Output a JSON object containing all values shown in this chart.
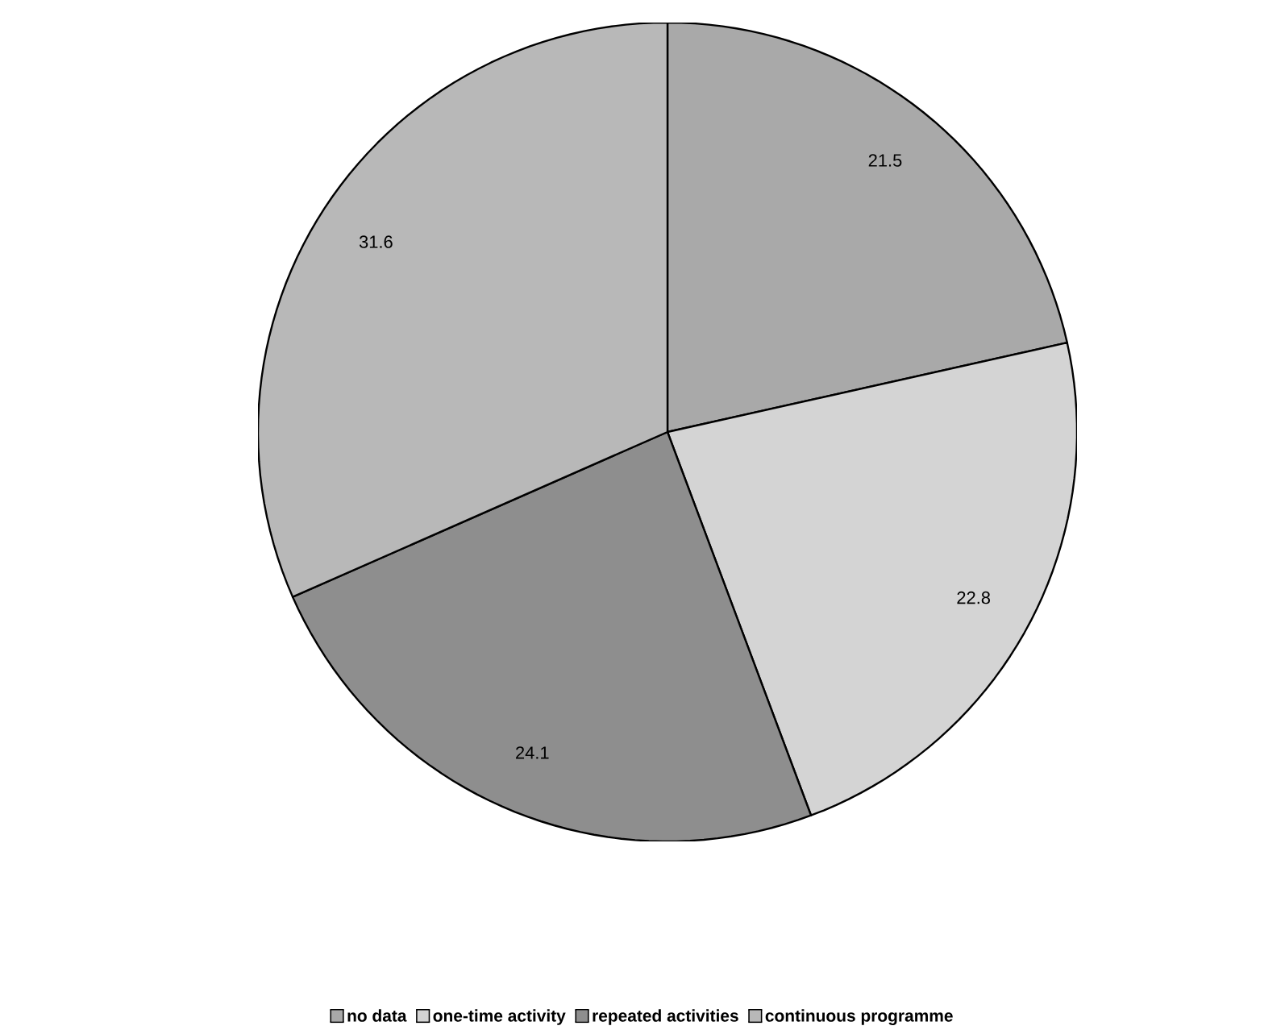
{
  "chart_data": {
    "type": "pie",
    "categories": [
      "no data",
      "one-time activity",
      "repeated activities",
      "continuous programme"
    ],
    "values": [
      21.5,
      22.8,
      24.1,
      31.6
    ],
    "colors": [
      "#a9a9a9",
      "#d4d4d4",
      "#8e8e8e",
      "#b8b8b8"
    ],
    "data_labels": true,
    "legend": "bottom"
  }
}
